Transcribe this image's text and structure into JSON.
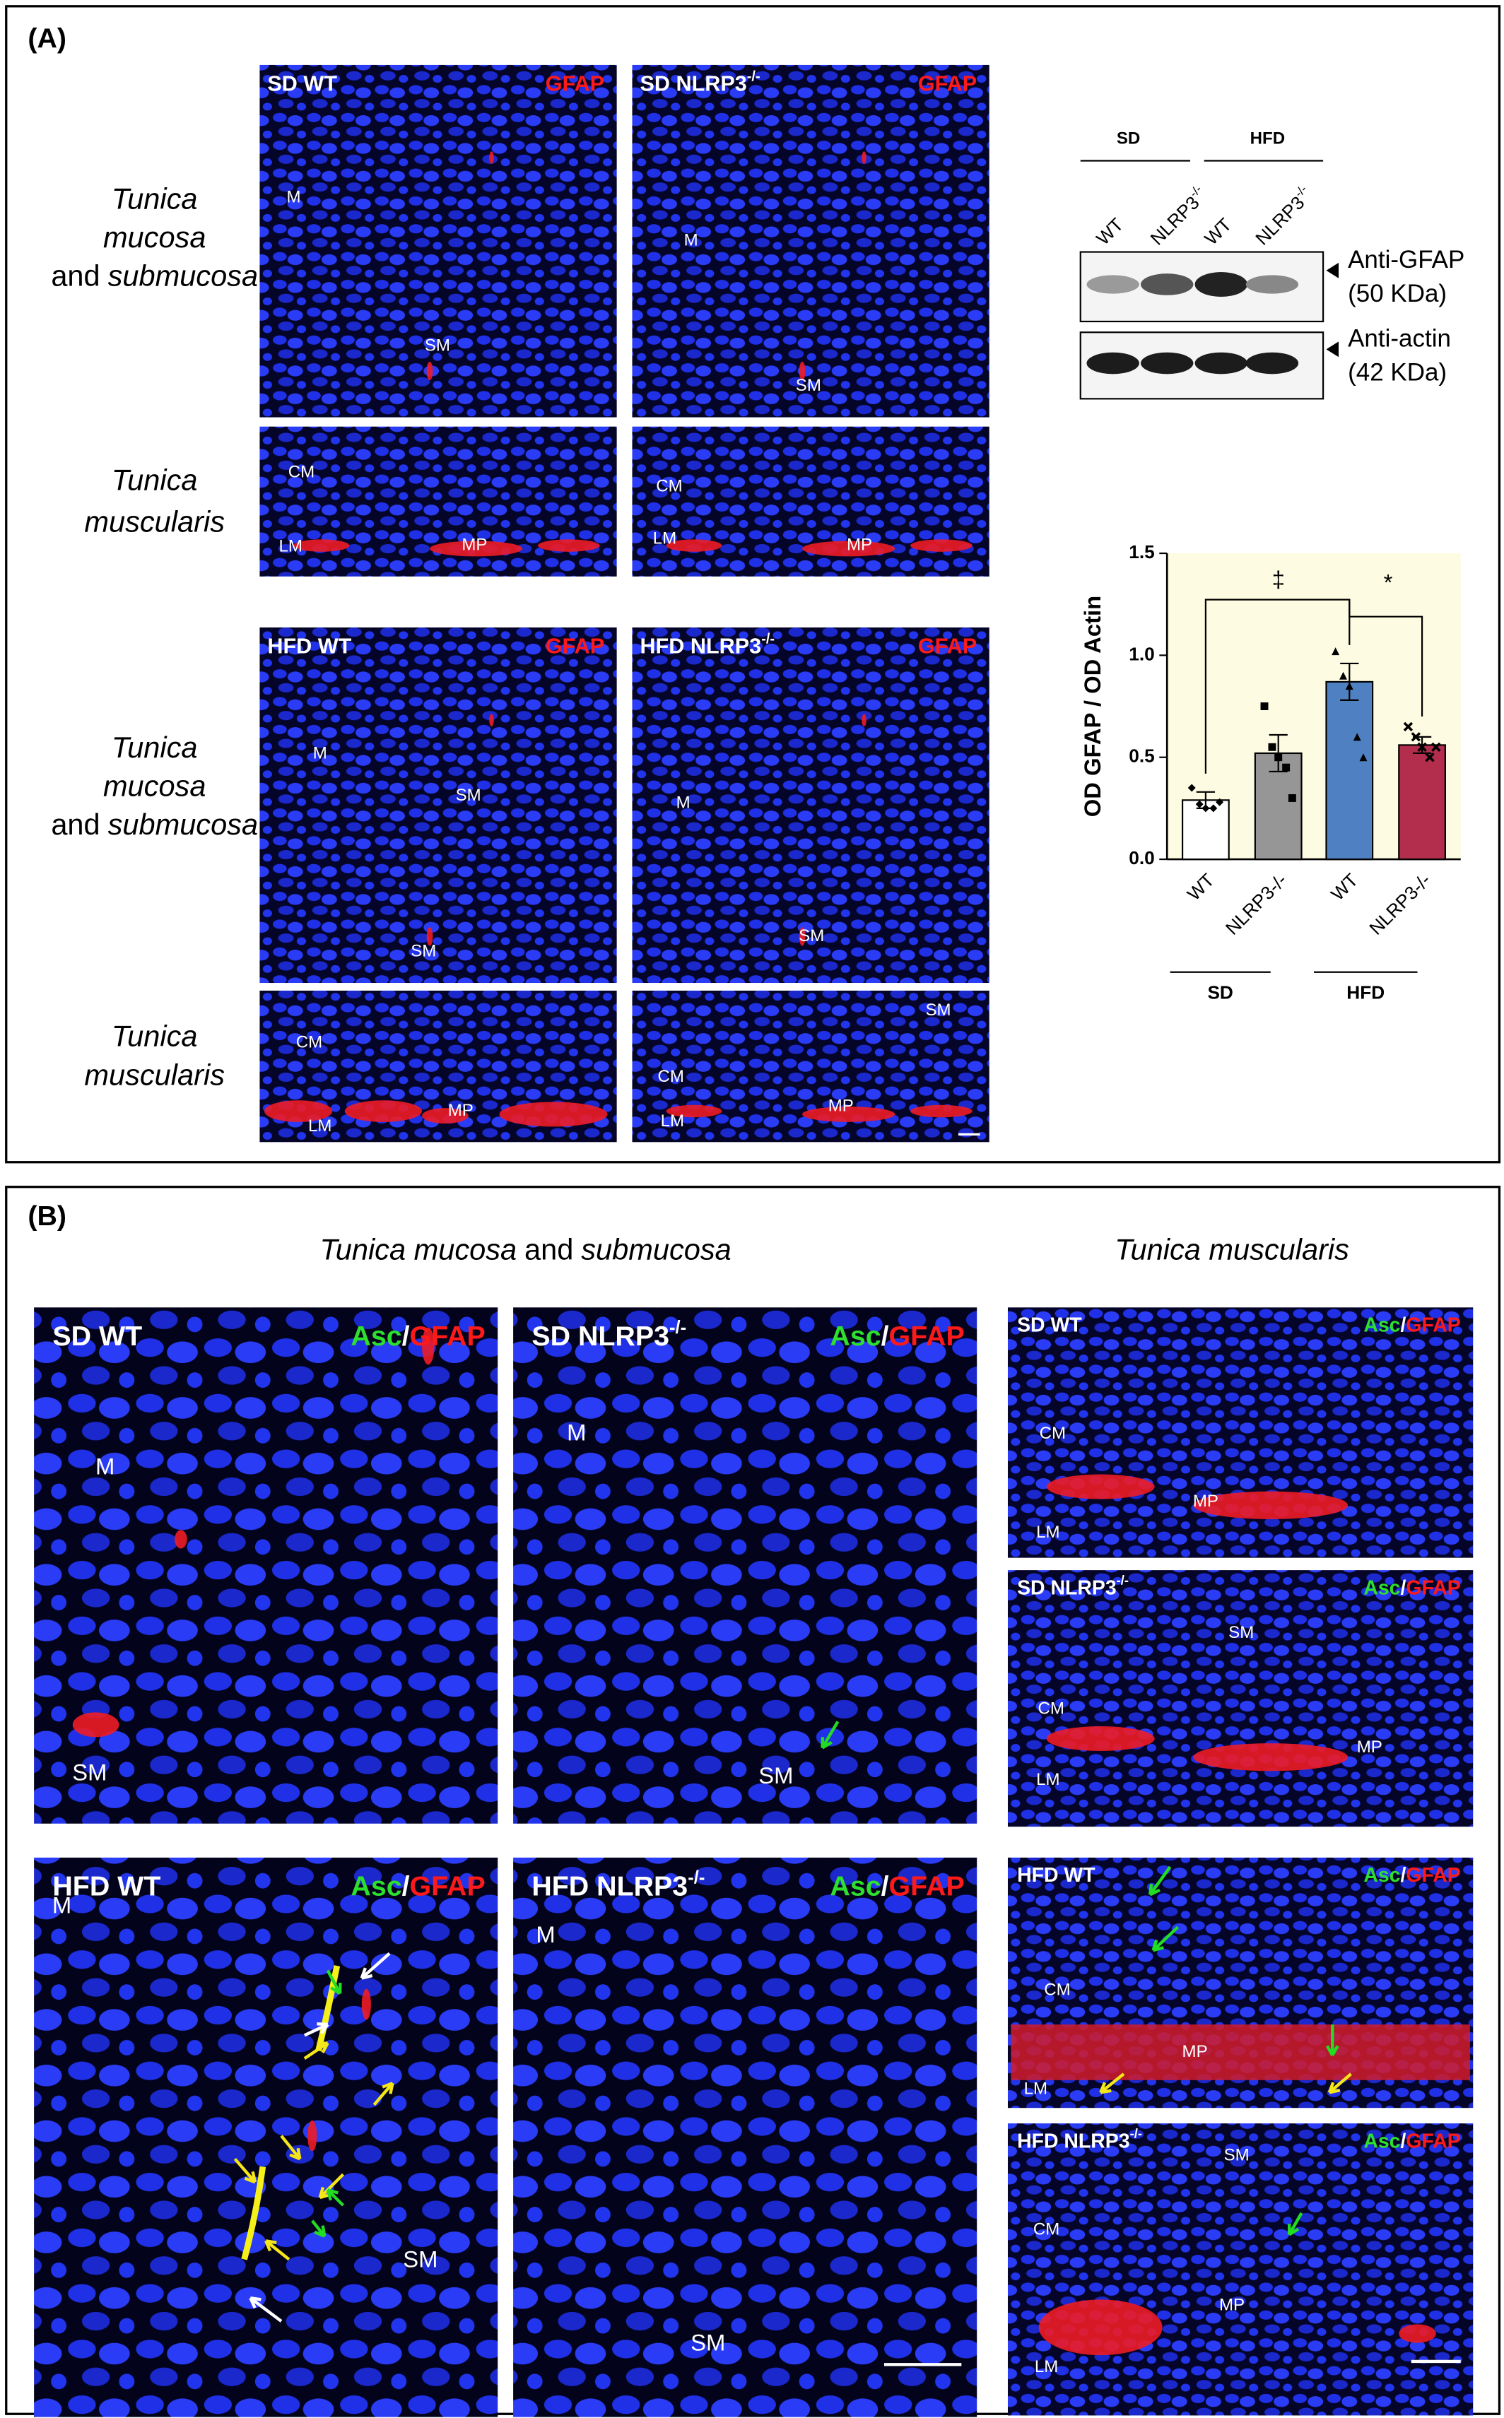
{
  "panel_a": {
    "label": "(A)",
    "row_labels": [
      {
        "lines": [
          "Tunica",
          "mucosa"
        ],
        "last_plain": "and",
        "last_italic": "submucosa"
      },
      {
        "lines": [
          "Tunica",
          "muscularis"
        ]
      },
      {
        "lines": [
          "Tunica",
          "mucosa"
        ],
        "last_plain": "and",
        "last_italic": "submucosa"
      },
      {
        "lines": [
          "Tunica",
          "muscularis"
        ]
      }
    ],
    "images": [
      {
        "title": "SD WT",
        "stain": "GFAP",
        "mucosa_labels": [
          "M",
          "SM"
        ],
        "muscularis_labels": [
          "CM",
          "LM",
          "MP"
        ]
      },
      {
        "title": "SD NLRP3",
        "title_sup": "-/-",
        "stain": "GFAP",
        "mucosa_labels": [
          "M",
          "SM"
        ],
        "muscularis_labels": [
          "CM",
          "LM",
          "MP"
        ]
      },
      {
        "title": "HFD WT",
        "stain": "GFAP",
        "mucosa_labels": [
          "M",
          "SM",
          "SM"
        ],
        "muscularis_labels": [
          "CM",
          "LM",
          "MP"
        ]
      },
      {
        "title": "HFD NLRP3",
        "title_sup": "-/-",
        "stain": "GFAP",
        "mucosa_labels": [
          "M",
          "SM"
        ],
        "muscularis_labels": [
          "SM",
          "CM",
          "LM",
          "MP"
        ]
      }
    ],
    "blot": {
      "groups": [
        "SD",
        "HFD"
      ],
      "lanes": [
        {
          "text": "WT"
        },
        {
          "text": "NLRP3",
          "sup": "-/-"
        },
        {
          "text": "WT"
        },
        {
          "text": "NLRP3",
          "sup": "-/-"
        }
      ],
      "bands": [
        {
          "name": "Anti-GFAP",
          "size": "(50 KDa)"
        },
        {
          "name": "Anti-actin",
          "size": "(42 KDa)"
        }
      ]
    }
  },
  "chart_data": {
    "type": "bar",
    "ylabel": "OD GFAP / OD Actin",
    "categories": [
      "WT",
      "NLRP3-/-",
      "WT",
      "NLRP3-/-"
    ],
    "values": [
      0.29,
      0.52,
      0.87,
      0.56
    ],
    "errors": [
      0.04,
      0.09,
      0.09,
      0.04
    ],
    "colors": [
      "#ffffff",
      "#969696",
      "#4f81c2",
      "#b22e4c"
    ],
    "points": [
      [
        0.35,
        0.27,
        0.25,
        0.25,
        0.28
      ],
      [
        0.75,
        0.55,
        0.5,
        0.45,
        0.3
      ],
      [
        1.02,
        0.9,
        0.85,
        0.6,
        0.5
      ],
      [
        0.65,
        0.6,
        0.55,
        0.5,
        0.55
      ]
    ],
    "groups": [
      {
        "name": "SD"
      },
      {
        "name": "HFD"
      }
    ],
    "annotations": [
      "‡",
      "*"
    ],
    "ylim": [
      0,
      1.5
    ],
    "yticks": [
      {
        "value": 0,
        "label": "0.0"
      },
      {
        "value": 0.5,
        "label": "0.5"
      },
      {
        "value": 1,
        "label": "1.0"
      },
      {
        "value": 1.5,
        "label": "1.5"
      }
    ],
    "plot_background": "#fdfbe1"
  },
  "panel_b": {
    "label": "(B)",
    "headers": [
      {
        "italic": "Tunica mucosa",
        "plain": "and",
        "italic2": "submucosa"
      },
      {
        "italic": "Tunica muscularis"
      }
    ],
    "images": [
      {
        "title": "SD WT",
        "stain": [
          "Asc",
          "/",
          "GFAP"
        ],
        "labels": [
          "M",
          "SM"
        ]
      },
      {
        "title": "SD NLRP3",
        "title_sup": "-/-",
        "stain": [
          "Asc",
          "/",
          "GFAP"
        ],
        "labels": [
          "M",
          "SM"
        ]
      },
      {
        "title": "HFD WT",
        "stain": [
          "Asc",
          "/",
          "GFAP"
        ],
        "labels": [
          "M",
          "SM"
        ]
      },
      {
        "title": "HFD NLRP3",
        "title_sup": "-/-",
        "stain": [
          "Asc",
          "/",
          "GFAP"
        ],
        "labels": [
          "M",
          "SM"
        ]
      },
      {
        "title": "SD WT",
        "stain": [
          "Asc",
          "/",
          "GFAP"
        ],
        "labels": [
          "CM",
          "MP",
          "LM"
        ]
      },
      {
        "title": "SD NLRP3",
        "title_sup": "-/-",
        "stain": [
          "Asc",
          "/",
          "GFAP"
        ],
        "labels": [
          "SM",
          "CM",
          "MP",
          "LM"
        ]
      },
      {
        "title": "HFD WT",
        "stain": [
          "Asc",
          "/",
          "GFAP"
        ],
        "labels": [
          "CM",
          "MP",
          "LM"
        ]
      },
      {
        "title": "HFD NLRP3",
        "title_sup": "-/-",
        "stain": [
          "Asc",
          "/",
          "GFAP"
        ],
        "labels": [
          "SM",
          "CM",
          "MP",
          "LM"
        ]
      }
    ]
  }
}
